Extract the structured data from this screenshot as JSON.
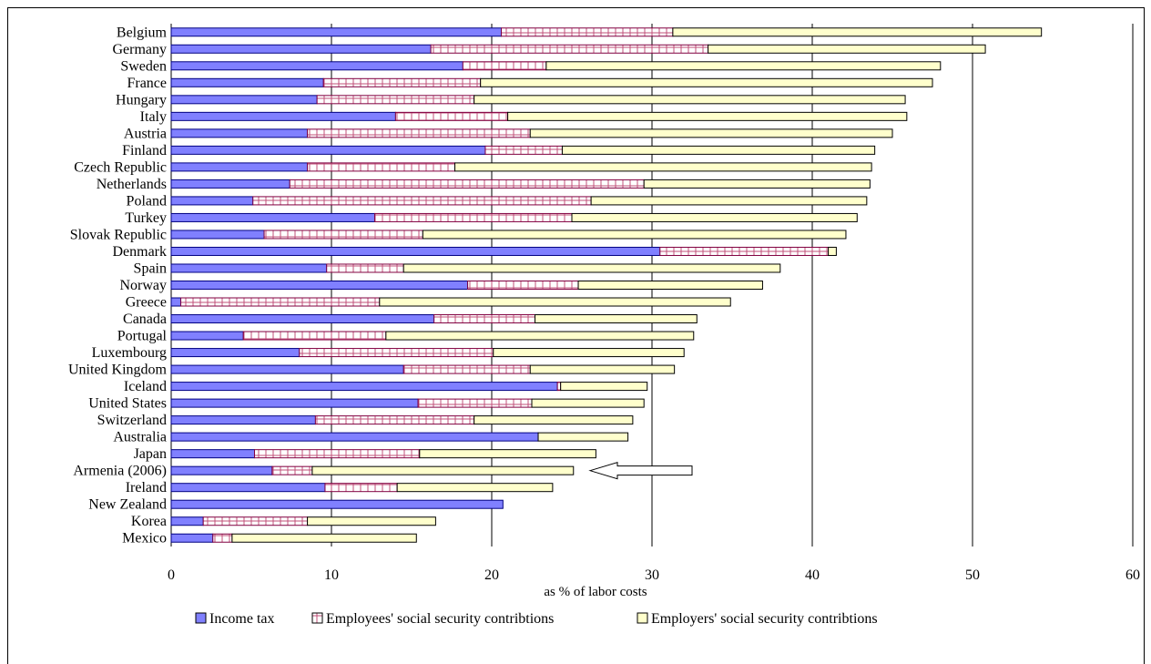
{
  "chart_data": {
    "type": "bar",
    "orientation": "horizontal",
    "stacked": true,
    "xlabel": "as % of labor costs",
    "xlim": [
      0,
      60
    ],
    "xticks": [
      0,
      10,
      20,
      30,
      40,
      50,
      60
    ],
    "grid": true,
    "legend_position": "bottom",
    "categories": [
      "Belgium",
      "Germany",
      "Sweden",
      "France",
      "Hungary",
      "Italy",
      "Austria",
      "Finland",
      "Czech Republic",
      "Netherlands",
      "Poland",
      "Turkey",
      "Slovak Republic",
      "Denmark",
      "Spain",
      "Norway",
      "Greece",
      "Canada",
      "Portugal",
      "Luxembourg",
      "United Kingdom",
      "Iceland",
      "United States",
      "Switzerland",
      "Australia",
      "Japan",
      "Armenia (2006)",
      "Ireland",
      "New Zealand",
      "Korea",
      "Mexico"
    ],
    "series": [
      {
        "name": "Income tax",
        "color": "#8080ff",
        "pattern": "solid",
        "values": [
          20.6,
          16.2,
          18.2,
          9.5,
          9.1,
          14.0,
          8.5,
          19.6,
          8.5,
          7.4,
          5.1,
          12.7,
          5.8,
          30.5,
          9.7,
          18.5,
          0.6,
          16.4,
          4.5,
          8.0,
          14.5,
          24.1,
          15.4,
          9.0,
          22.9,
          5.2,
          6.3,
          9.6,
          20.7,
          2.0,
          2.6
        ]
      },
      {
        "name": "Employees' social security contribtions",
        "color": "#ffffff",
        "pattern": "hatch",
        "values": [
          10.7,
          17.3,
          5.2,
          9.8,
          9.8,
          7.0,
          13.9,
          4.8,
          9.2,
          22.1,
          21.1,
          12.3,
          9.9,
          10.5,
          4.8,
          6.9,
          12.4,
          6.3,
          8.9,
          12.1,
          7.9,
          0.2,
          7.1,
          9.9,
          0.0,
          10.3,
          2.5,
          4.5,
          0.0,
          6.5,
          1.2
        ]
      },
      {
        "name": "Employers' social security contribtions",
        "color": "#ffffcc",
        "pattern": "solid",
        "values": [
          23.0,
          17.3,
          24.6,
          28.2,
          26.9,
          24.9,
          22.6,
          19.5,
          26.0,
          14.1,
          17.2,
          17.8,
          26.4,
          0.5,
          23.5,
          11.5,
          21.9,
          10.1,
          19.2,
          11.9,
          9.0,
          5.4,
          7.0,
          9.9,
          5.6,
          11.0,
          16.3,
          9.7,
          0.0,
          8.0,
          11.5
        ]
      }
    ],
    "annotations": [
      {
        "type": "arrow",
        "target": "Armenia (2006)",
        "direction": "left"
      }
    ]
  }
}
